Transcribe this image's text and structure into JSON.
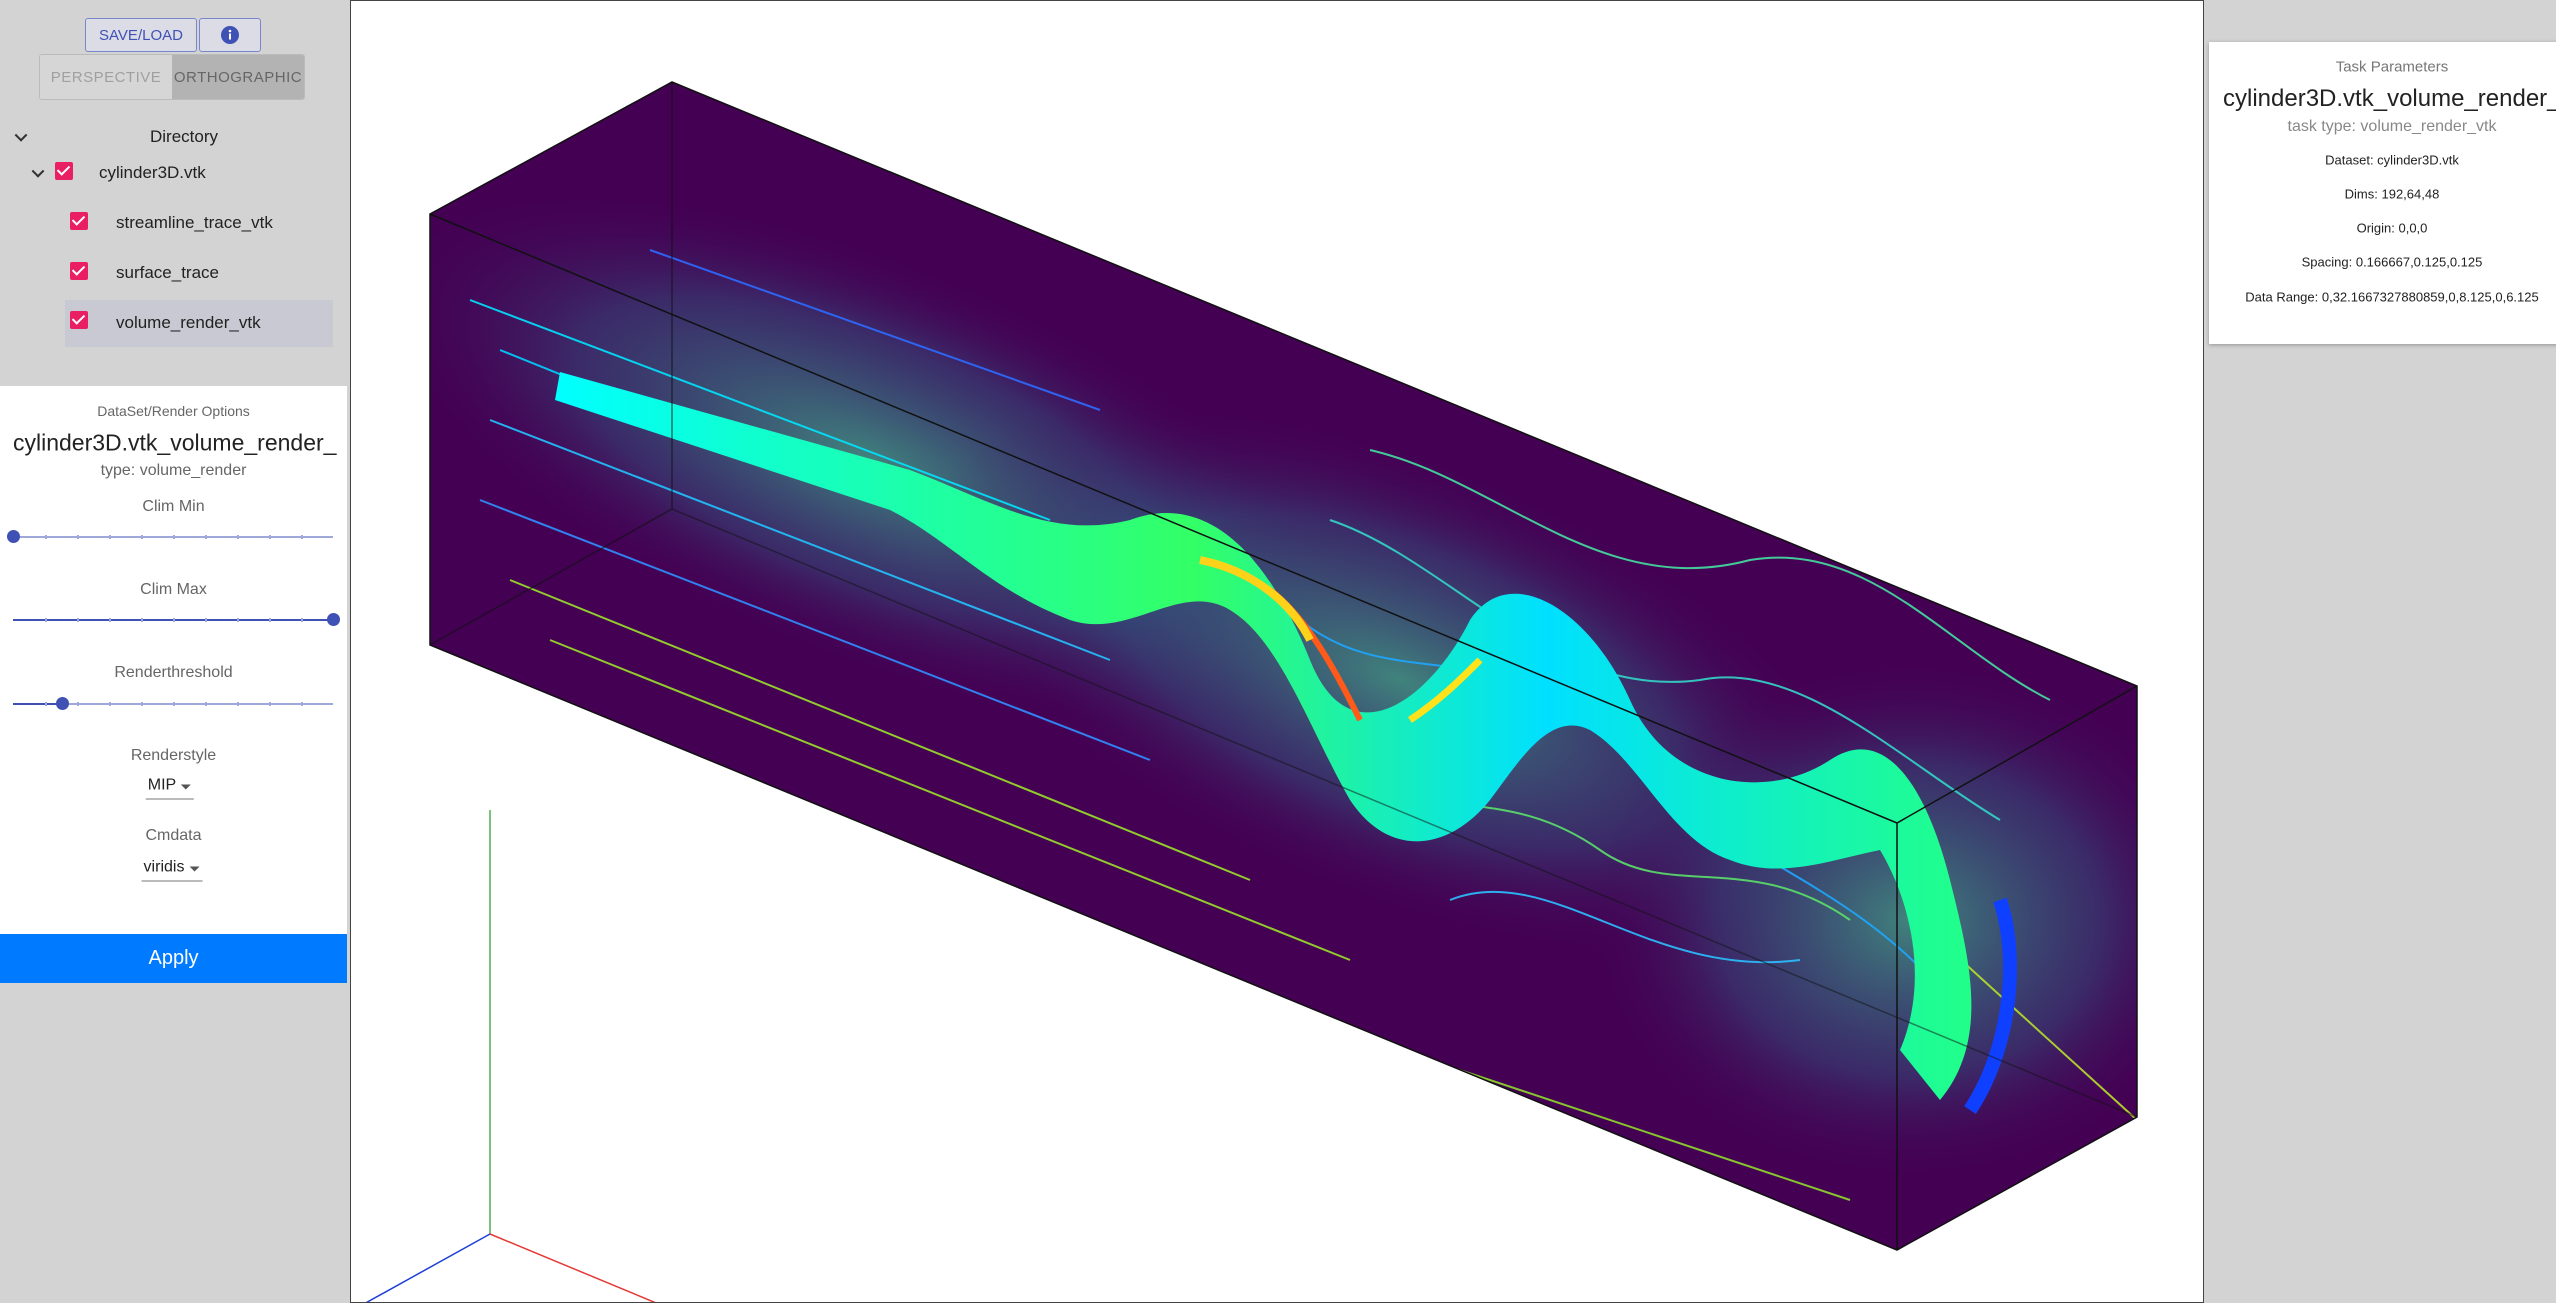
{
  "toolbar": {
    "save_load": "SAVE/LOAD",
    "projection": [
      "PERSPECTIVE",
      "ORTHOGRAPHIC"
    ]
  },
  "directory": {
    "title": "Directory",
    "root": {
      "label": "cylinder3D.vtk",
      "children": [
        "streamline_trace_vtk",
        "surface_trace",
        "volume_render_vtk"
      ]
    }
  },
  "options": {
    "heading": "DataSet/Render Options",
    "name": "cylinder3D.vtk_volume_render_",
    "type": "type: volume_render",
    "clim_min": "Clim Min",
    "clim_max": "Clim Max",
    "renderthreshold": "Renderthreshold",
    "renderstyle": {
      "label": "Renderstyle",
      "value": "MIP"
    },
    "cmdata": {
      "label": "Cmdata",
      "value": "viridis"
    },
    "apply": "Apply"
  },
  "task": {
    "heading": "Task Parameters",
    "name": "cylinder3D.vtk_volume_render_",
    "type": "task type: volume_render_vtk",
    "params": [
      "Dataset: cylinder3D.vtk",
      "Dims: 192,64,48",
      "Origin: 0,0,0",
      "Spacing: 0.166667,0.125,0.125",
      "Data Range: 0,32.1667327880859,0,8.125,0,6.125"
    ]
  }
}
